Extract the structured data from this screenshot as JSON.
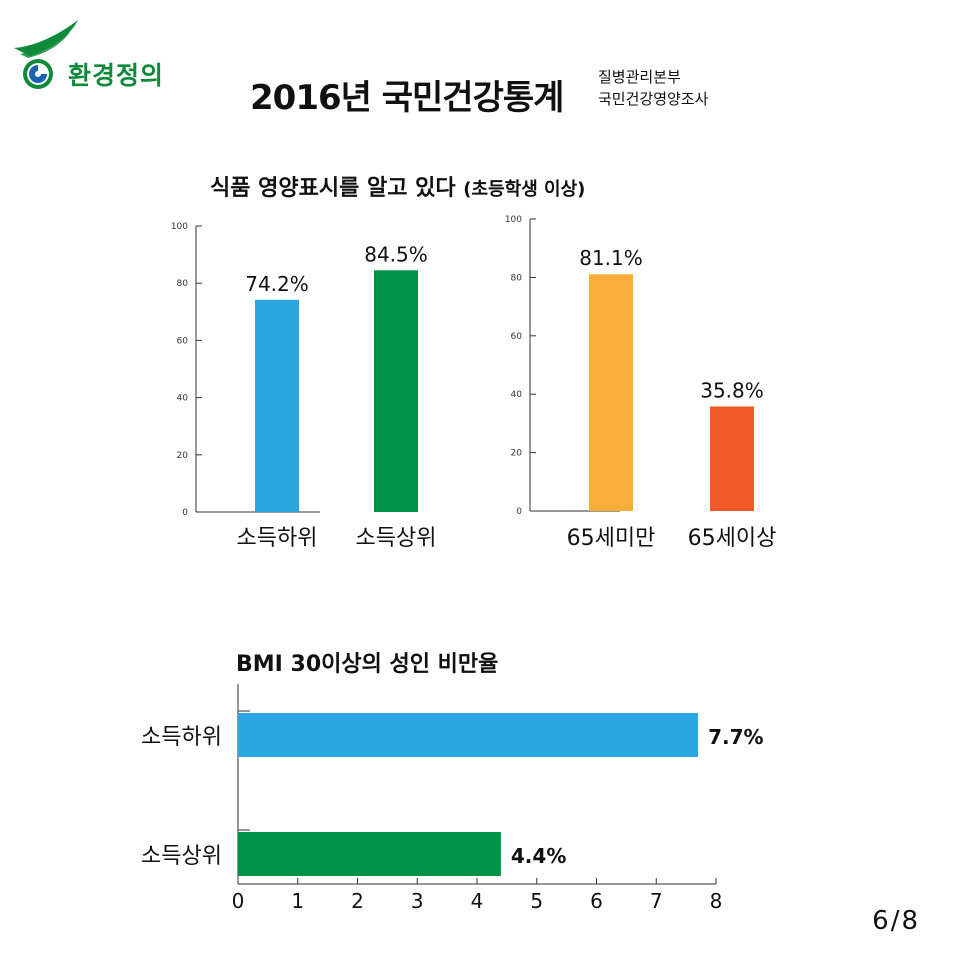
{
  "header": {
    "logo_text": "환경정의",
    "title": "2016년 국민건강통계",
    "source_line1": "질병관리본부",
    "source_line2": "국민건강영양조사",
    "colors": {
      "brand_green": "#0e8a3a"
    }
  },
  "section1": {
    "title": "식품 영양표시를 알고 있다",
    "subtitle": "(초등학생 이상)"
  },
  "section2": {
    "title": "BMI 30이상의 성인 비만율"
  },
  "page": "6/8",
  "chart_data": [
    {
      "type": "bar",
      "title": "식품 영양표시를 알고 있다 (초등학생 이상)",
      "categories": [
        "소득하위",
        "소득상위"
      ],
      "values": [
        74.2,
        84.5
      ],
      "labels": [
        "74.2%",
        "84.5%"
      ],
      "colors": [
        "#2aa7e0",
        "#009046"
      ],
      "ylim": [
        0,
        100
      ],
      "yticks": [
        0,
        20,
        40,
        60,
        80,
        100
      ]
    },
    {
      "type": "bar",
      "title": "식품 영양표시를 알고 있다 (초등학생 이상)",
      "categories": [
        "65세미만",
        "65세이상"
      ],
      "values": [
        81.1,
        35.8
      ],
      "labels": [
        "81.1%",
        "35.8%"
      ],
      "colors": [
        "#f9ae3b",
        "#f05a28"
      ],
      "ylim": [
        0,
        100
      ],
      "yticks": [
        0,
        20,
        40,
        60,
        80,
        100
      ]
    },
    {
      "type": "bar",
      "orientation": "horizontal",
      "title": "BMI 30이상의 성인 비만율",
      "categories": [
        "소득하위",
        "소득상위"
      ],
      "values": [
        7.7,
        4.4
      ],
      "labels": [
        "7.7%",
        "4.4%"
      ],
      "colors": [
        "#2aa7e0",
        "#009046"
      ],
      "xlim": [
        0,
        8
      ],
      "xticks": [
        0,
        1,
        2,
        3,
        4,
        5,
        6,
        7,
        8
      ]
    }
  ]
}
